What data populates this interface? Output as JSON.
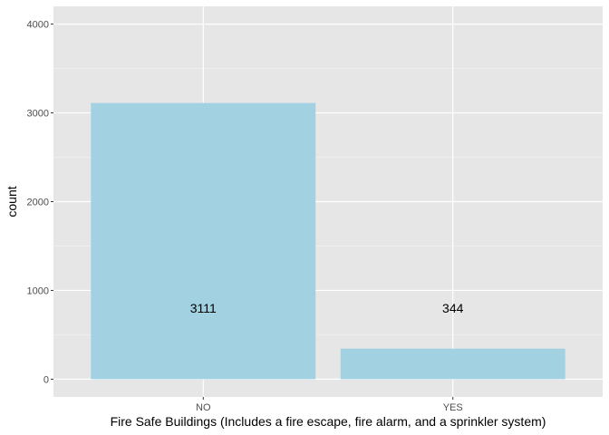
{
  "chart_data": {
    "type": "bar",
    "categories": [
      "NO",
      "YES"
    ],
    "values": [
      3111,
      344
    ],
    "data_labels": [
      "3111",
      "344"
    ],
    "data_label_value": 800,
    "title": "",
    "xlabel": "Fire Safe Buildings (Includes a fire escape, fire alarm, and a sprinkler system)",
    "ylabel": "count",
    "ylim": [
      -200,
      4200
    ],
    "yticks": [
      0,
      1000,
      2000,
      3000,
      4000
    ],
    "ytick_labels": [
      "0",
      "1000",
      "2000",
      "3000",
      "4000"
    ],
    "grid": true,
    "legend": "none",
    "colors": {
      "bar": "#a2d1e2",
      "panel": "#e6e6e6",
      "grid_major": "#ffffff",
      "grid_minor": "#f2f2f2"
    }
  }
}
